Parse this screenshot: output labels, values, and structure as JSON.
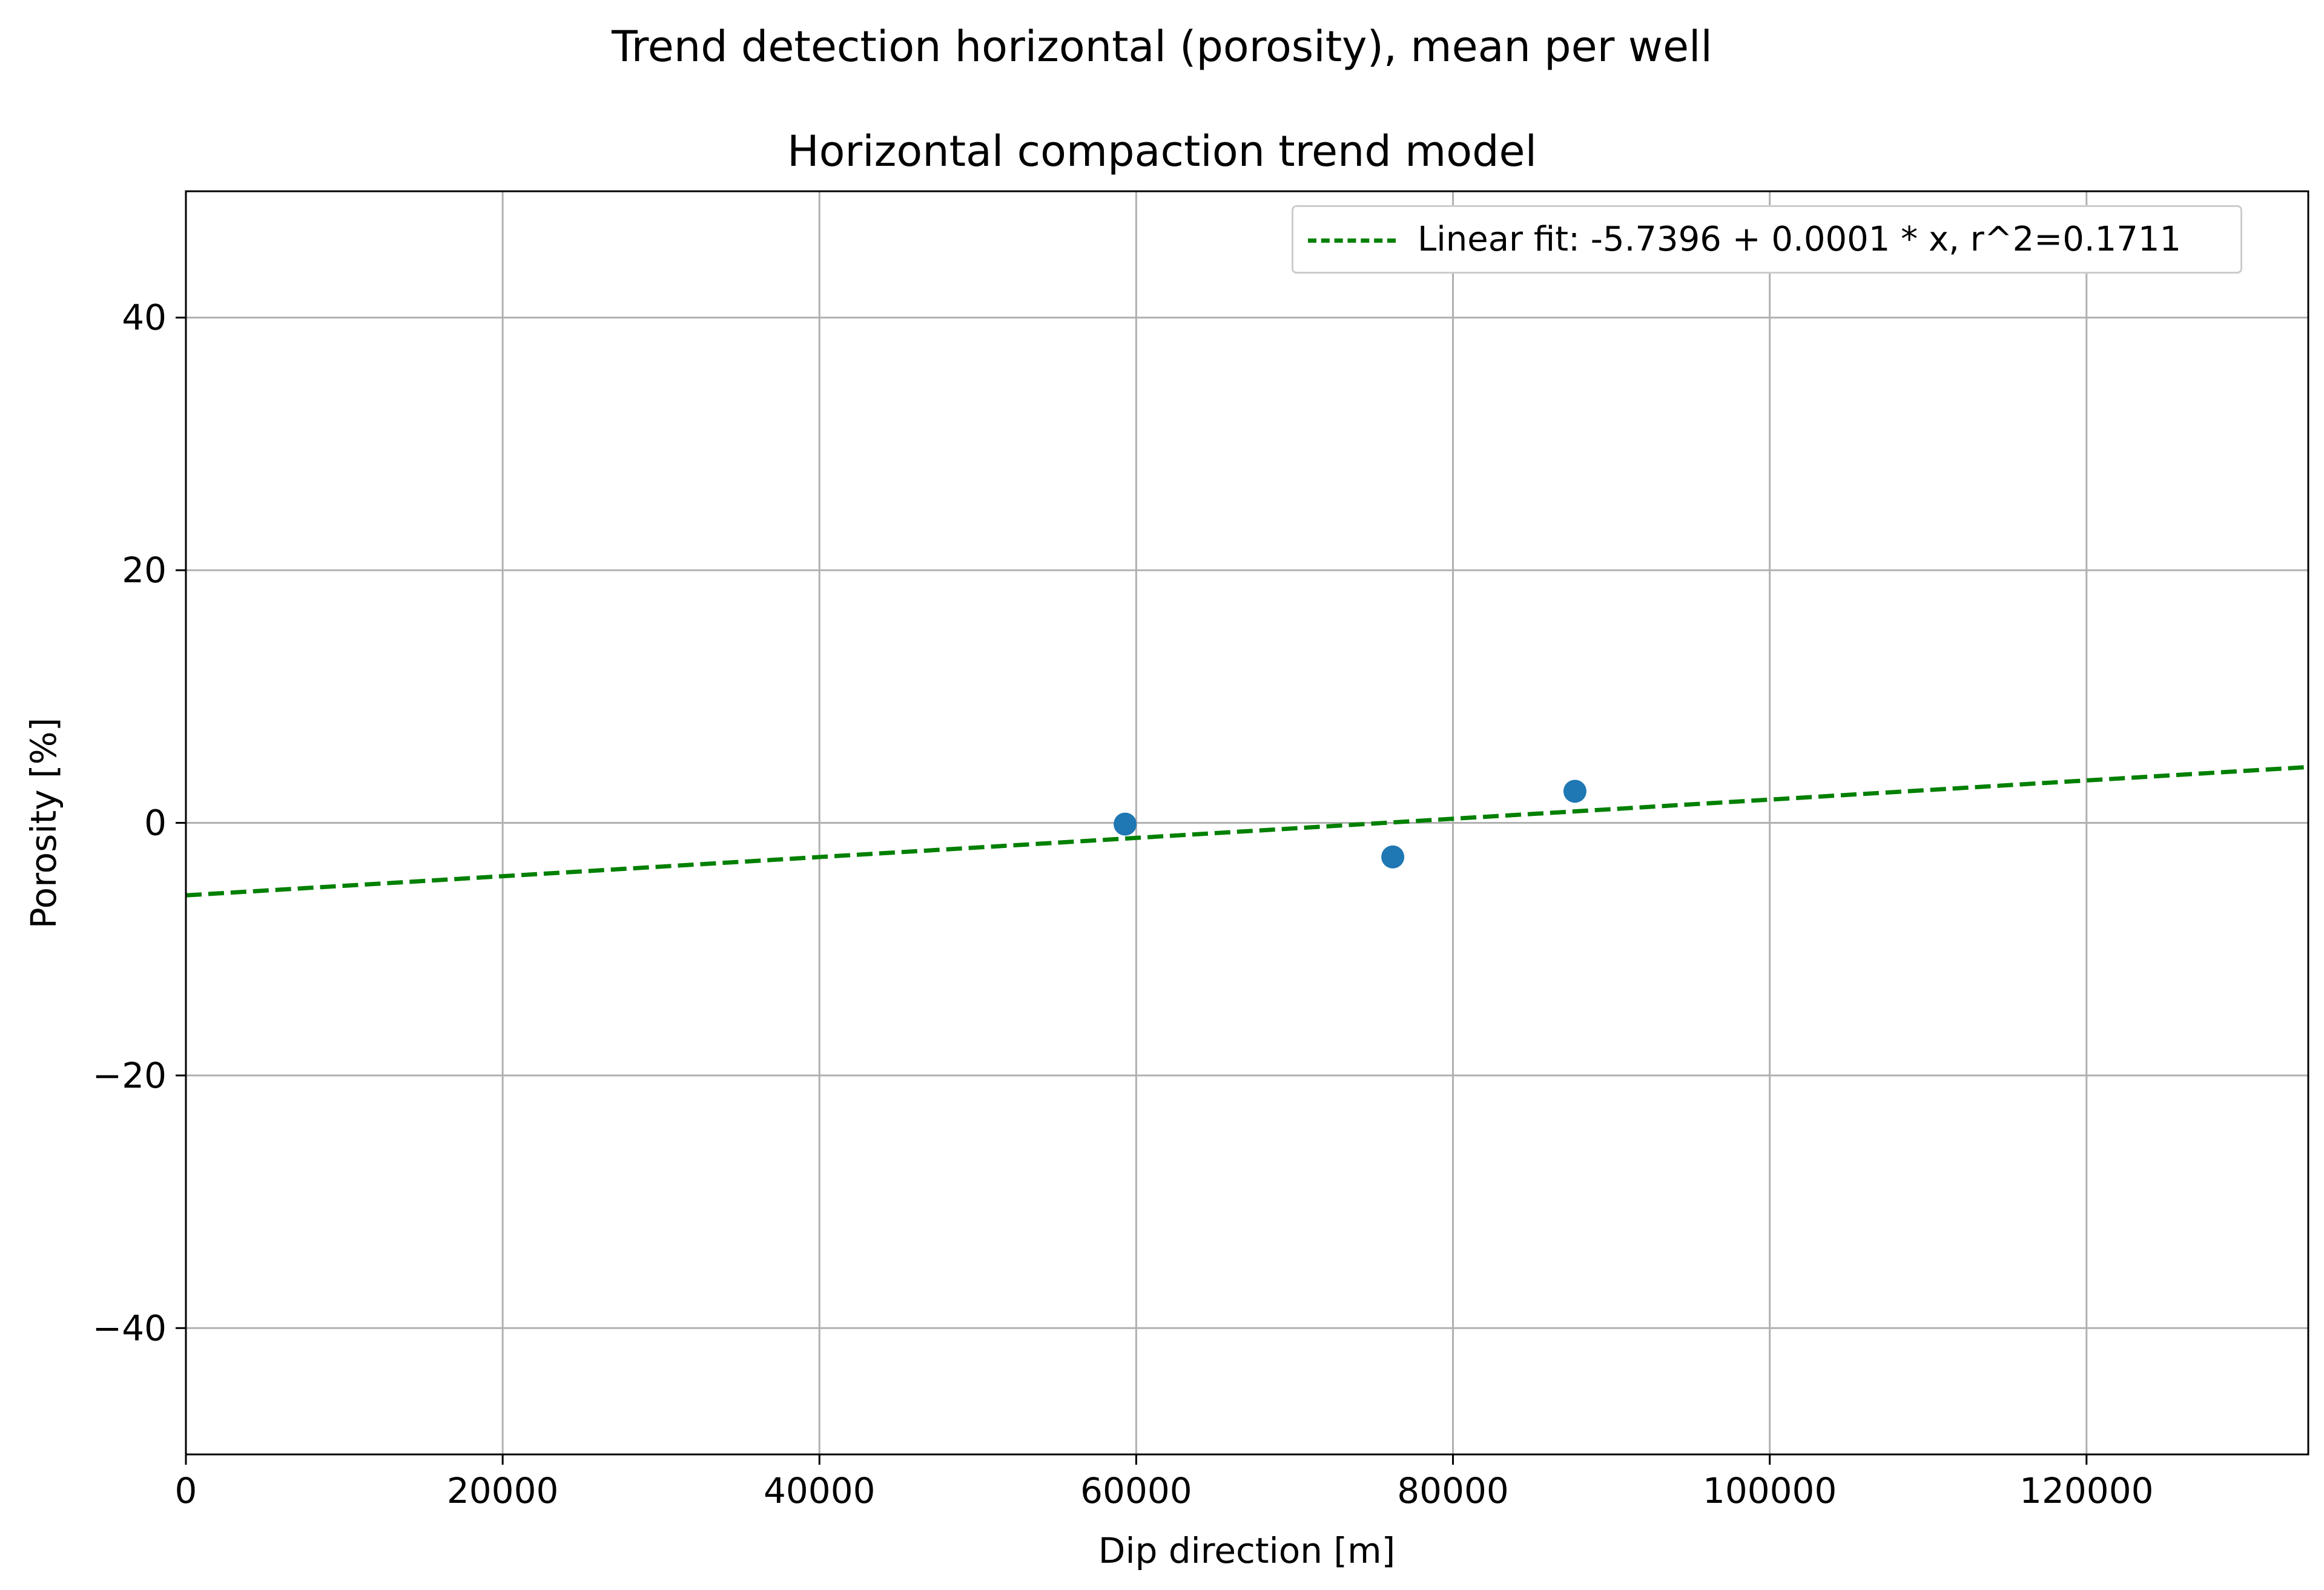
{
  "figure": {
    "suptitle": "Trend detection horizontal (porosity), mean per well"
  },
  "chart_data": {
    "type": "scatter",
    "title": "Horizontal compaction trend model",
    "xlabel": "Dip direction [m]",
    "ylabel": "Porosity [%]",
    "xlim": [
      0,
      134000
    ],
    "ylim": [
      -50,
      50
    ],
    "xticks": [
      0,
      20000,
      40000,
      60000,
      80000,
      100000,
      120000
    ],
    "xtick_labels": [
      "0",
      "20000",
      "40000",
      "60000",
      "80000",
      "100000",
      "120000"
    ],
    "yticks": [
      -40,
      -20,
      0,
      20,
      40
    ],
    "ytick_labels": [
      "−40",
      "−20",
      "0",
      "20",
      "40"
    ],
    "grid": true,
    "legend_position": "top-right",
    "series": [
      {
        "kind": "scatter",
        "color": "#1f77b4",
        "points": [
          {
            "x": 59300,
            "y": -0.1
          },
          {
            "x": 76200,
            "y": -2.7
          },
          {
            "x": 87700,
            "y": 2.5
          }
        ]
      },
      {
        "kind": "line",
        "name": "Linear fit: -5.7396 + 0.0001 * x, r^2=0.1711",
        "color": "#008000",
        "style": "dashed",
        "intercept": -5.7396,
        "slope": 7.58e-05
      }
    ]
  }
}
